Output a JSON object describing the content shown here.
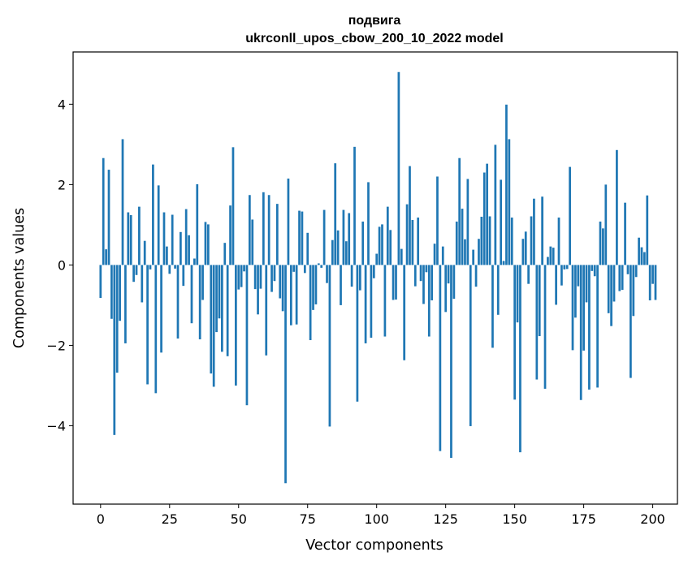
{
  "chart_data": {
    "type": "bar",
    "title_line1": "подвига",
    "title_line2": "ukrconll_upos_cbow_200_10_2022 model",
    "xlabel": "Vector components",
    "ylabel": "Components values",
    "xlim": [
      -9.95,
      208.95
    ],
    "ylim": [
      -5.95,
      5.3
    ],
    "xticks": [
      0,
      25,
      50,
      75,
      100,
      125,
      150,
      175,
      200
    ],
    "xtick_labels": [
      "0",
      "25",
      "50",
      "75",
      "100",
      "125",
      "150",
      "175",
      "200"
    ],
    "yticks": [
      -4,
      -2,
      0,
      2,
      4
    ],
    "ytick_labels": [
      "−4",
      "−2",
      "0",
      "2",
      "4"
    ],
    "bar_color": "#1f77b4",
    "grid": false,
    "values": [
      -0.82,
      2.66,
      0.39,
      2.37,
      -1.34,
      -4.23,
      -2.68,
      -1.39,
      3.13,
      -1.95,
      1.31,
      1.24,
      -0.42,
      -0.25,
      1.45,
      -0.93,
      0.6,
      -2.97,
      -0.11,
      2.5,
      -3.19,
      1.98,
      -2.18,
      1.31,
      0.46,
      -0.22,
      1.25,
      -0.09,
      -1.83,
      0.82,
      -0.52,
      1.39,
      0.74,
      -1.45,
      0.16,
      2.01,
      -1.85,
      -0.87,
      1.07,
      1.01,
      -2.7,
      -3.03,
      -1.67,
      -1.33,
      -2.16,
      0.55,
      -2.27,
      1.48,
      2.93,
      -3.0,
      -0.61,
      -0.55,
      -0.16,
      -3.49,
      1.74,
      1.13,
      -0.6,
      -1.23,
      -0.59,
      1.81,
      -2.25,
      1.74,
      -0.67,
      -0.4,
      1.52,
      -0.83,
      -1.15,
      -5.43,
      2.15,
      -1.5,
      -0.17,
      -1.48,
      1.35,
      1.33,
      -0.2,
      0.8,
      -1.87,
      -1.12,
      -0.98,
      0.04,
      -0.07,
      1.37,
      -0.45,
      -4.02,
      0.62,
      2.53,
      0.86,
      -1.0,
      1.37,
      0.59,
      1.29,
      -0.54,
      2.94,
      -3.4,
      -0.63,
      1.08,
      -1.95,
      2.06,
      -1.81,
      -0.33,
      0.28,
      0.95,
      1.01,
      -1.78,
      1.45,
      0.87,
      -0.87,
      -0.86,
      4.8,
      0.4,
      -2.37,
      1.51,
      2.46,
      1.12,
      -0.53,
      1.18,
      -0.4,
      -0.97,
      -0.18,
      -1.78,
      -0.88,
      0.53,
      2.2,
      -4.63,
      0.46,
      -1.17,
      -0.46,
      -4.8,
      -0.84,
      1.08,
      2.66,
      1.4,
      0.64,
      2.14,
      -4.01,
      0.38,
      -0.54,
      0.65,
      1.2,
      2.3,
      2.52,
      1.21,
      -2.06,
      2.99,
      -1.24,
      2.12,
      0.1,
      3.99,
      3.13,
      1.18,
      -3.35,
      -1.43,
      -4.66,
      0.65,
      0.83,
      -0.47,
      1.21,
      1.65,
      -2.85,
      -1.77,
      1.7,
      -3.08,
      0.2,
      0.46,
      0.43,
      -0.99,
      1.18,
      -0.51,
      -0.11,
      -0.1,
      2.44,
      -2.12,
      -1.31,
      -0.53,
      -3.36,
      -2.13,
      -0.93,
      -3.1,
      -0.15,
      -0.28,
      -3.05,
      1.08,
      0.91,
      2.0,
      -1.2,
      -1.52,
      -0.91,
      2.86,
      -0.65,
      -0.62,
      1.55,
      -0.23,
      -2.81,
      -1.27,
      -0.3,
      0.68,
      0.44,
      0.32,
      1.73,
      -0.88,
      -0.47,
      -0.87
    ]
  }
}
